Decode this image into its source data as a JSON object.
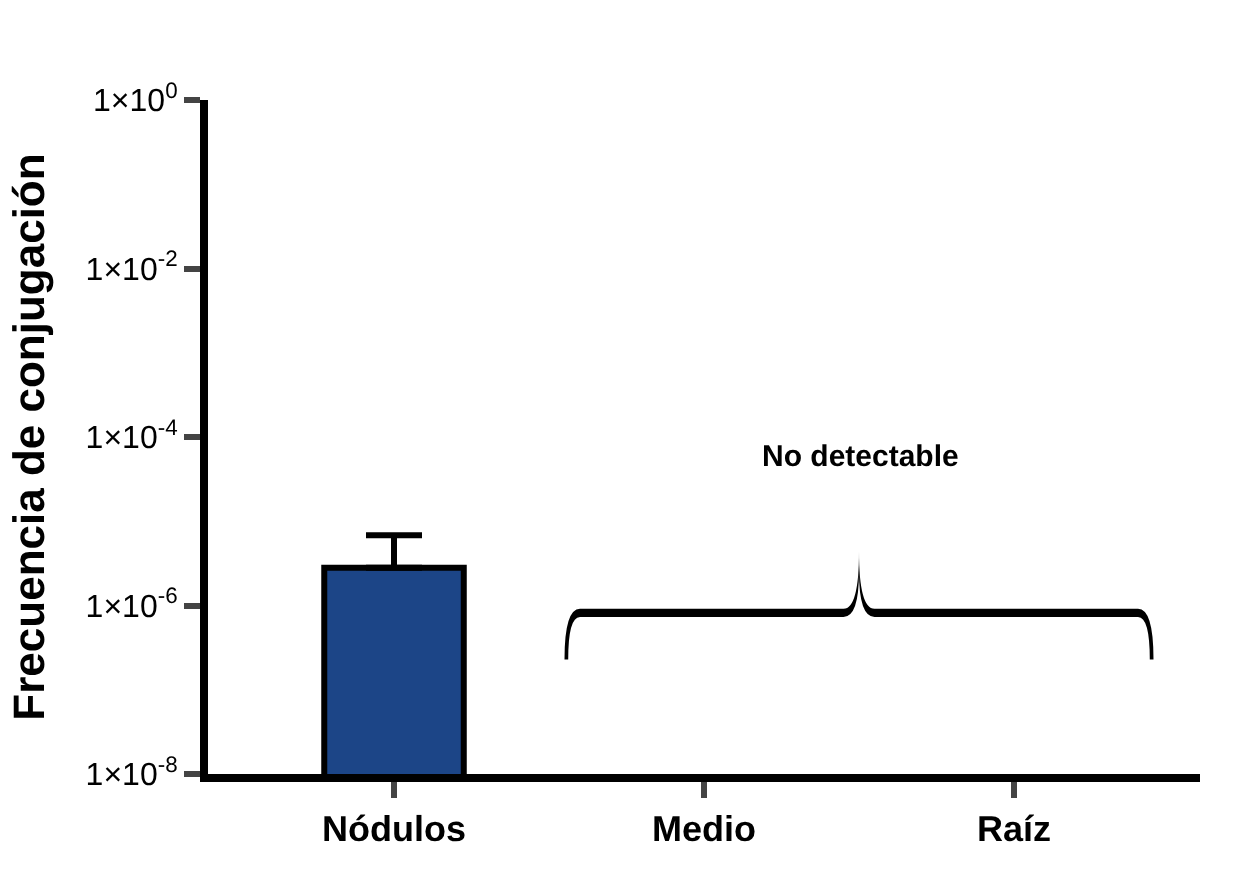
{
  "chart_data": {
    "type": "bar",
    "ylabel": "Frecuencia de conjugación",
    "categories": [
      "Nódulos",
      "Medio",
      "Raíz"
    ],
    "values": [
      2.8e-06,
      null,
      null
    ],
    "errors": [
      [
        2.8e-06,
        6.8e-06
      ],
      null,
      null
    ],
    "color": "#1c4587",
    "log": "y",
    "ylim": [
      1e-08,
      1
    ],
    "yticks": [
      {
        "value": 1e-08,
        "label": "1×10$^{-8}$"
      },
      {
        "value": 1e-06,
        "label": "1×10$^{-6}$"
      },
      {
        "value": 0.0001,
        "label": "1×10$^{-4}$"
      },
      {
        "value": 0.01,
        "label": "1×10$^{-2}$"
      },
      {
        "value": 1,
        "label": "1×10$^{0}$"
      }
    ],
    "annotations": [
      "No detectable"
    ]
  }
}
